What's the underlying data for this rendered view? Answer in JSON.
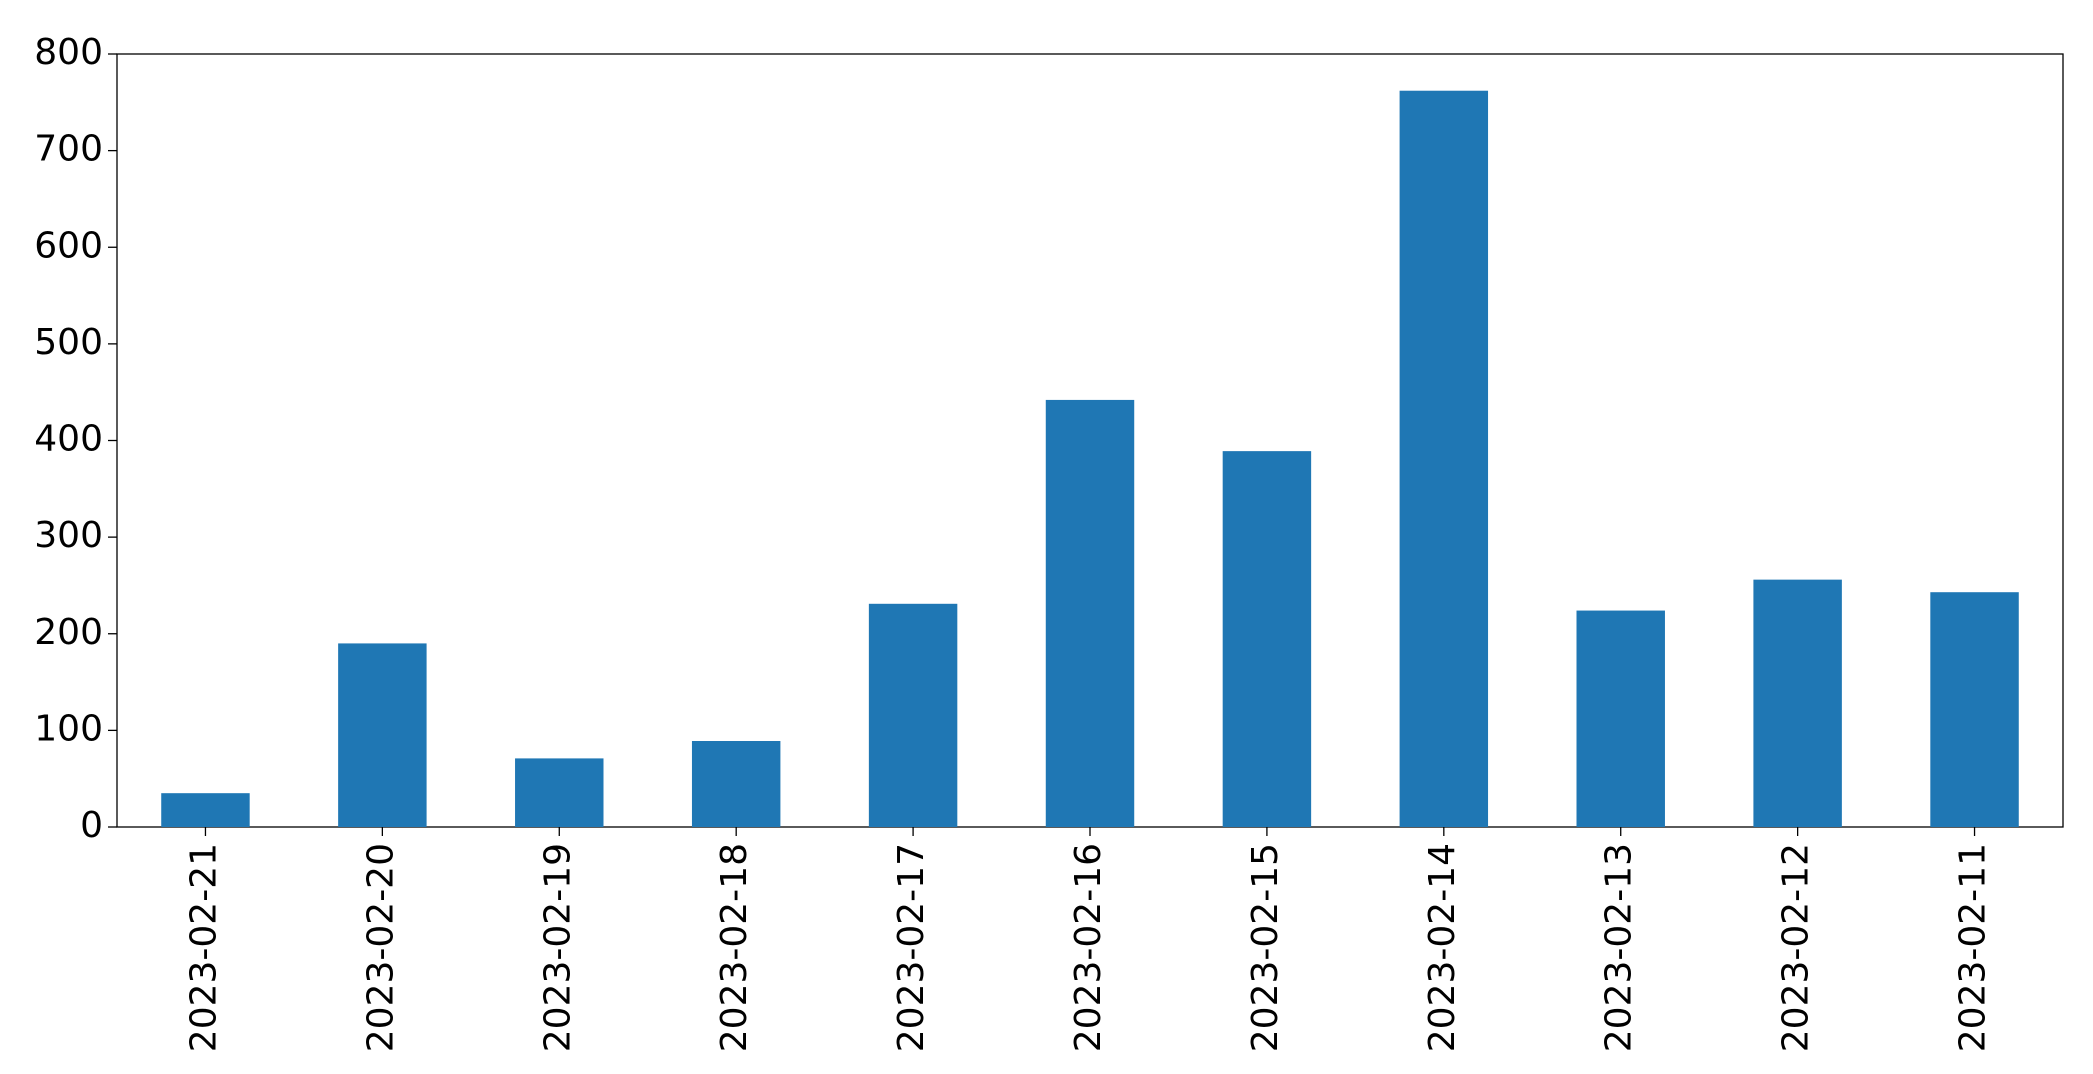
{
  "chart_data": {
    "type": "bar",
    "categories": [
      "2023-02-21",
      "2023-02-20",
      "2023-02-19",
      "2023-02-18",
      "2023-02-17",
      "2023-02-16",
      "2023-02-15",
      "2023-02-14",
      "2023-02-13",
      "2023-02-12",
      "2023-02-11"
    ],
    "values": [
      35,
      190,
      71,
      89,
      231,
      442,
      389,
      762,
      224,
      256,
      243
    ],
    "color": "#1f77b4",
    "ylim": [
      0,
      800
    ],
    "yticks": [
      0,
      100,
      200,
      300,
      400,
      500,
      600,
      700,
      800
    ],
    "grid": false
  }
}
